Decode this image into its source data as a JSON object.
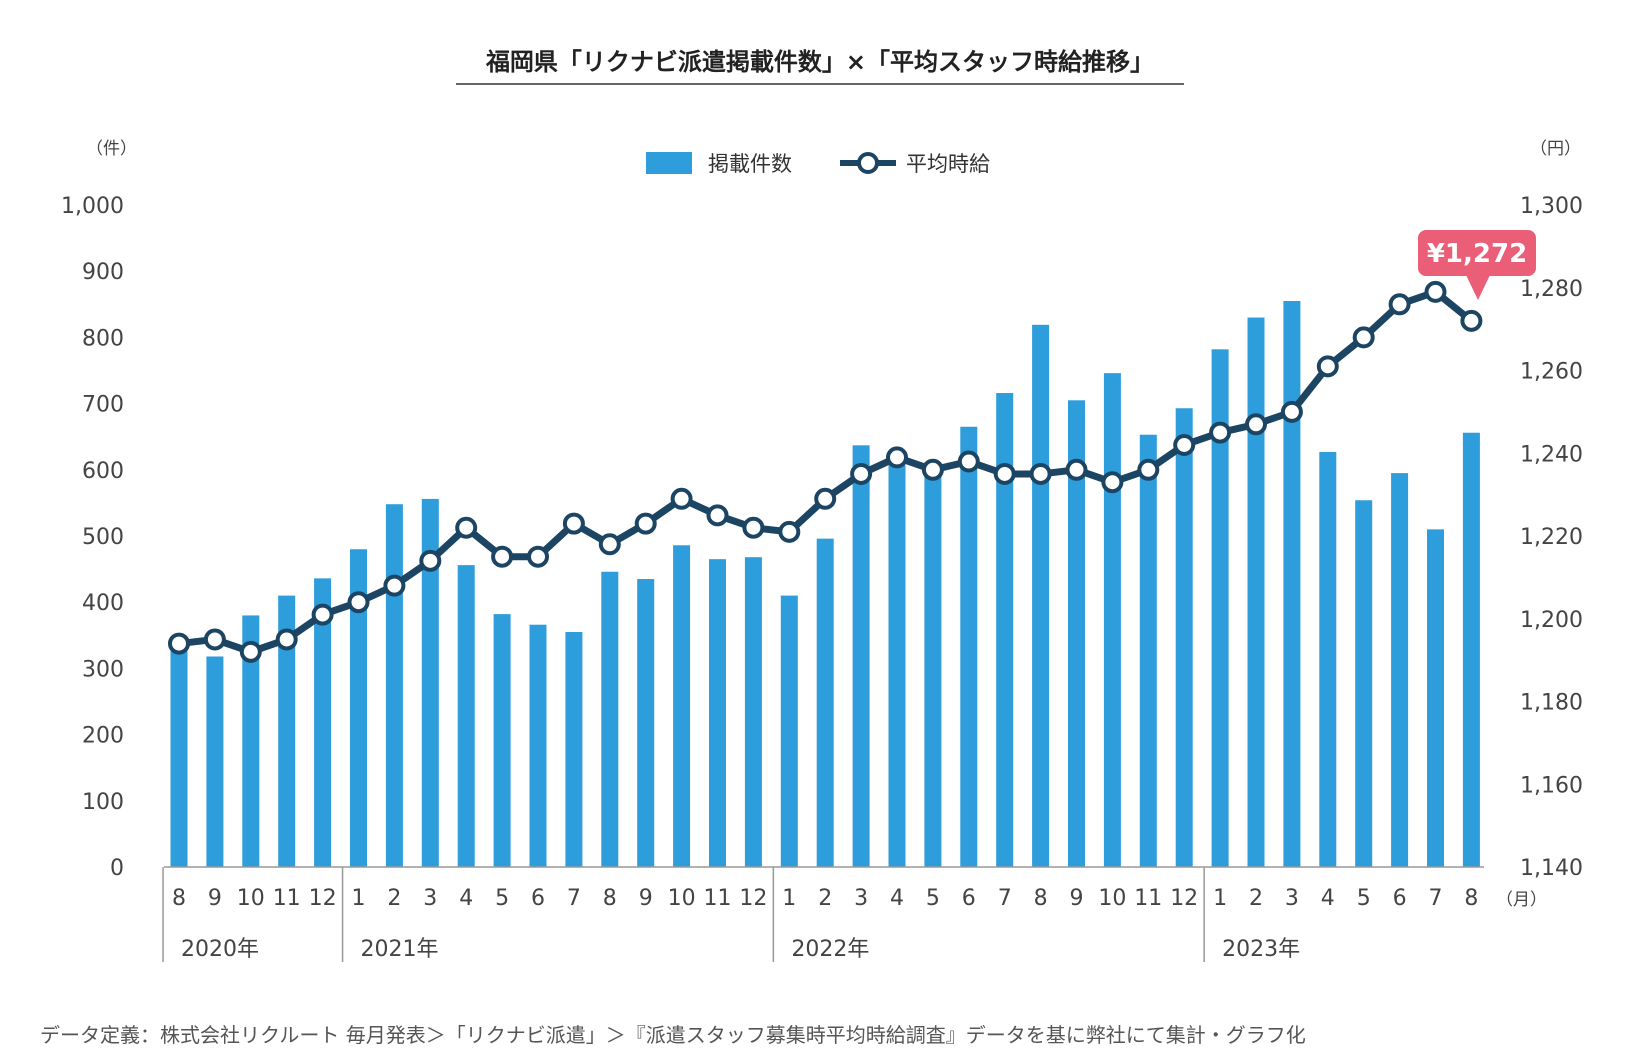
{
  "title": "福岡県「リクナビ派遣掲載件数」×「平均スタッフ時給推移」",
  "left_unit": "（件）",
  "right_unit": "（円）",
  "month_unit": "（月）",
  "legend": {
    "bar_label": "掲載件数",
    "line_label": "平均時給"
  },
  "callout": "¥1,272",
  "note": "データ定義：株式会社リクルート 毎月発表＞「リクナビ派遣」＞『派遣スタッフ募集時平均時給調査』データを基に弊社にて集計・グラフ化",
  "colors": {
    "bar": "#2e9ddb",
    "line": "#1c4563",
    "callout": "#ea5e77",
    "axis": "#999999"
  },
  "chart_data": {
    "type": "bar+line",
    "title": "福岡県「リクナビ派遣掲載件数」×「平均スタッフ時給推移」",
    "categories": [
      "8",
      "9",
      "10",
      "11",
      "12",
      "1",
      "2",
      "3",
      "4",
      "5",
      "6",
      "7",
      "8",
      "9",
      "10",
      "11",
      "12",
      "1",
      "2",
      "3",
      "4",
      "5",
      "6",
      "7",
      "8",
      "9",
      "10",
      "11",
      "12",
      "1",
      "2",
      "3",
      "4",
      "5",
      "6",
      "7",
      "8"
    ],
    "year_groups": [
      {
        "label": "2020年",
        "start": 0,
        "end": 4
      },
      {
        "label": "2021年",
        "start": 5,
        "end": 16
      },
      {
        "label": "2022年",
        "start": 17,
        "end": 28
      },
      {
        "label": "2023年",
        "start": 29,
        "end": 36
      }
    ],
    "left_axis": {
      "ylim": [
        0,
        1000
      ],
      "ticks": [
        "0",
        "100",
        "200",
        "300",
        "400",
        "500",
        "600",
        "700",
        "800",
        "900",
        "1,000"
      ],
      "tick_values": [
        0,
        100,
        200,
        300,
        400,
        500,
        600,
        700,
        800,
        900,
        1000
      ]
    },
    "right_axis": {
      "ylim": [
        1140,
        1300
      ],
      "ticks": [
        "1,140",
        "1,160",
        "1,180",
        "1,200",
        "1,220",
        "1,240",
        "1,260",
        "1,280",
        "1,300"
      ],
      "tick_values": [
        1140,
        1160,
        1180,
        1200,
        1220,
        1240,
        1260,
        1280,
        1300
      ]
    },
    "series": [
      {
        "name": "掲載件数",
        "type": "bar",
        "axis": "left",
        "values": [
          334,
          318,
          380,
          410,
          436,
          480,
          548,
          556,
          456,
          382,
          366,
          355,
          446,
          435,
          486,
          465,
          468,
          410,
          496,
          637,
          607,
          596,
          665,
          716,
          819,
          705,
          746,
          653,
          693,
          782,
          830,
          855,
          627,
          554,
          595,
          510,
          656
        ]
      },
      {
        "name": "平均時給",
        "type": "line",
        "axis": "right",
        "values": [
          1194,
          1195,
          1192,
          1195,
          1201,
          1204,
          1208,
          1214,
          1222,
          1215,
          1215,
          1223,
          1218,
          1223,
          1229,
          1225,
          1222,
          1221,
          1229,
          1235,
          1239,
          1236,
          1238,
          1235,
          1235,
          1236,
          1233,
          1236,
          1242,
          1245,
          1247,
          1250,
          1261,
          1268,
          1276,
          1279,
          1272
        ]
      }
    ]
  }
}
